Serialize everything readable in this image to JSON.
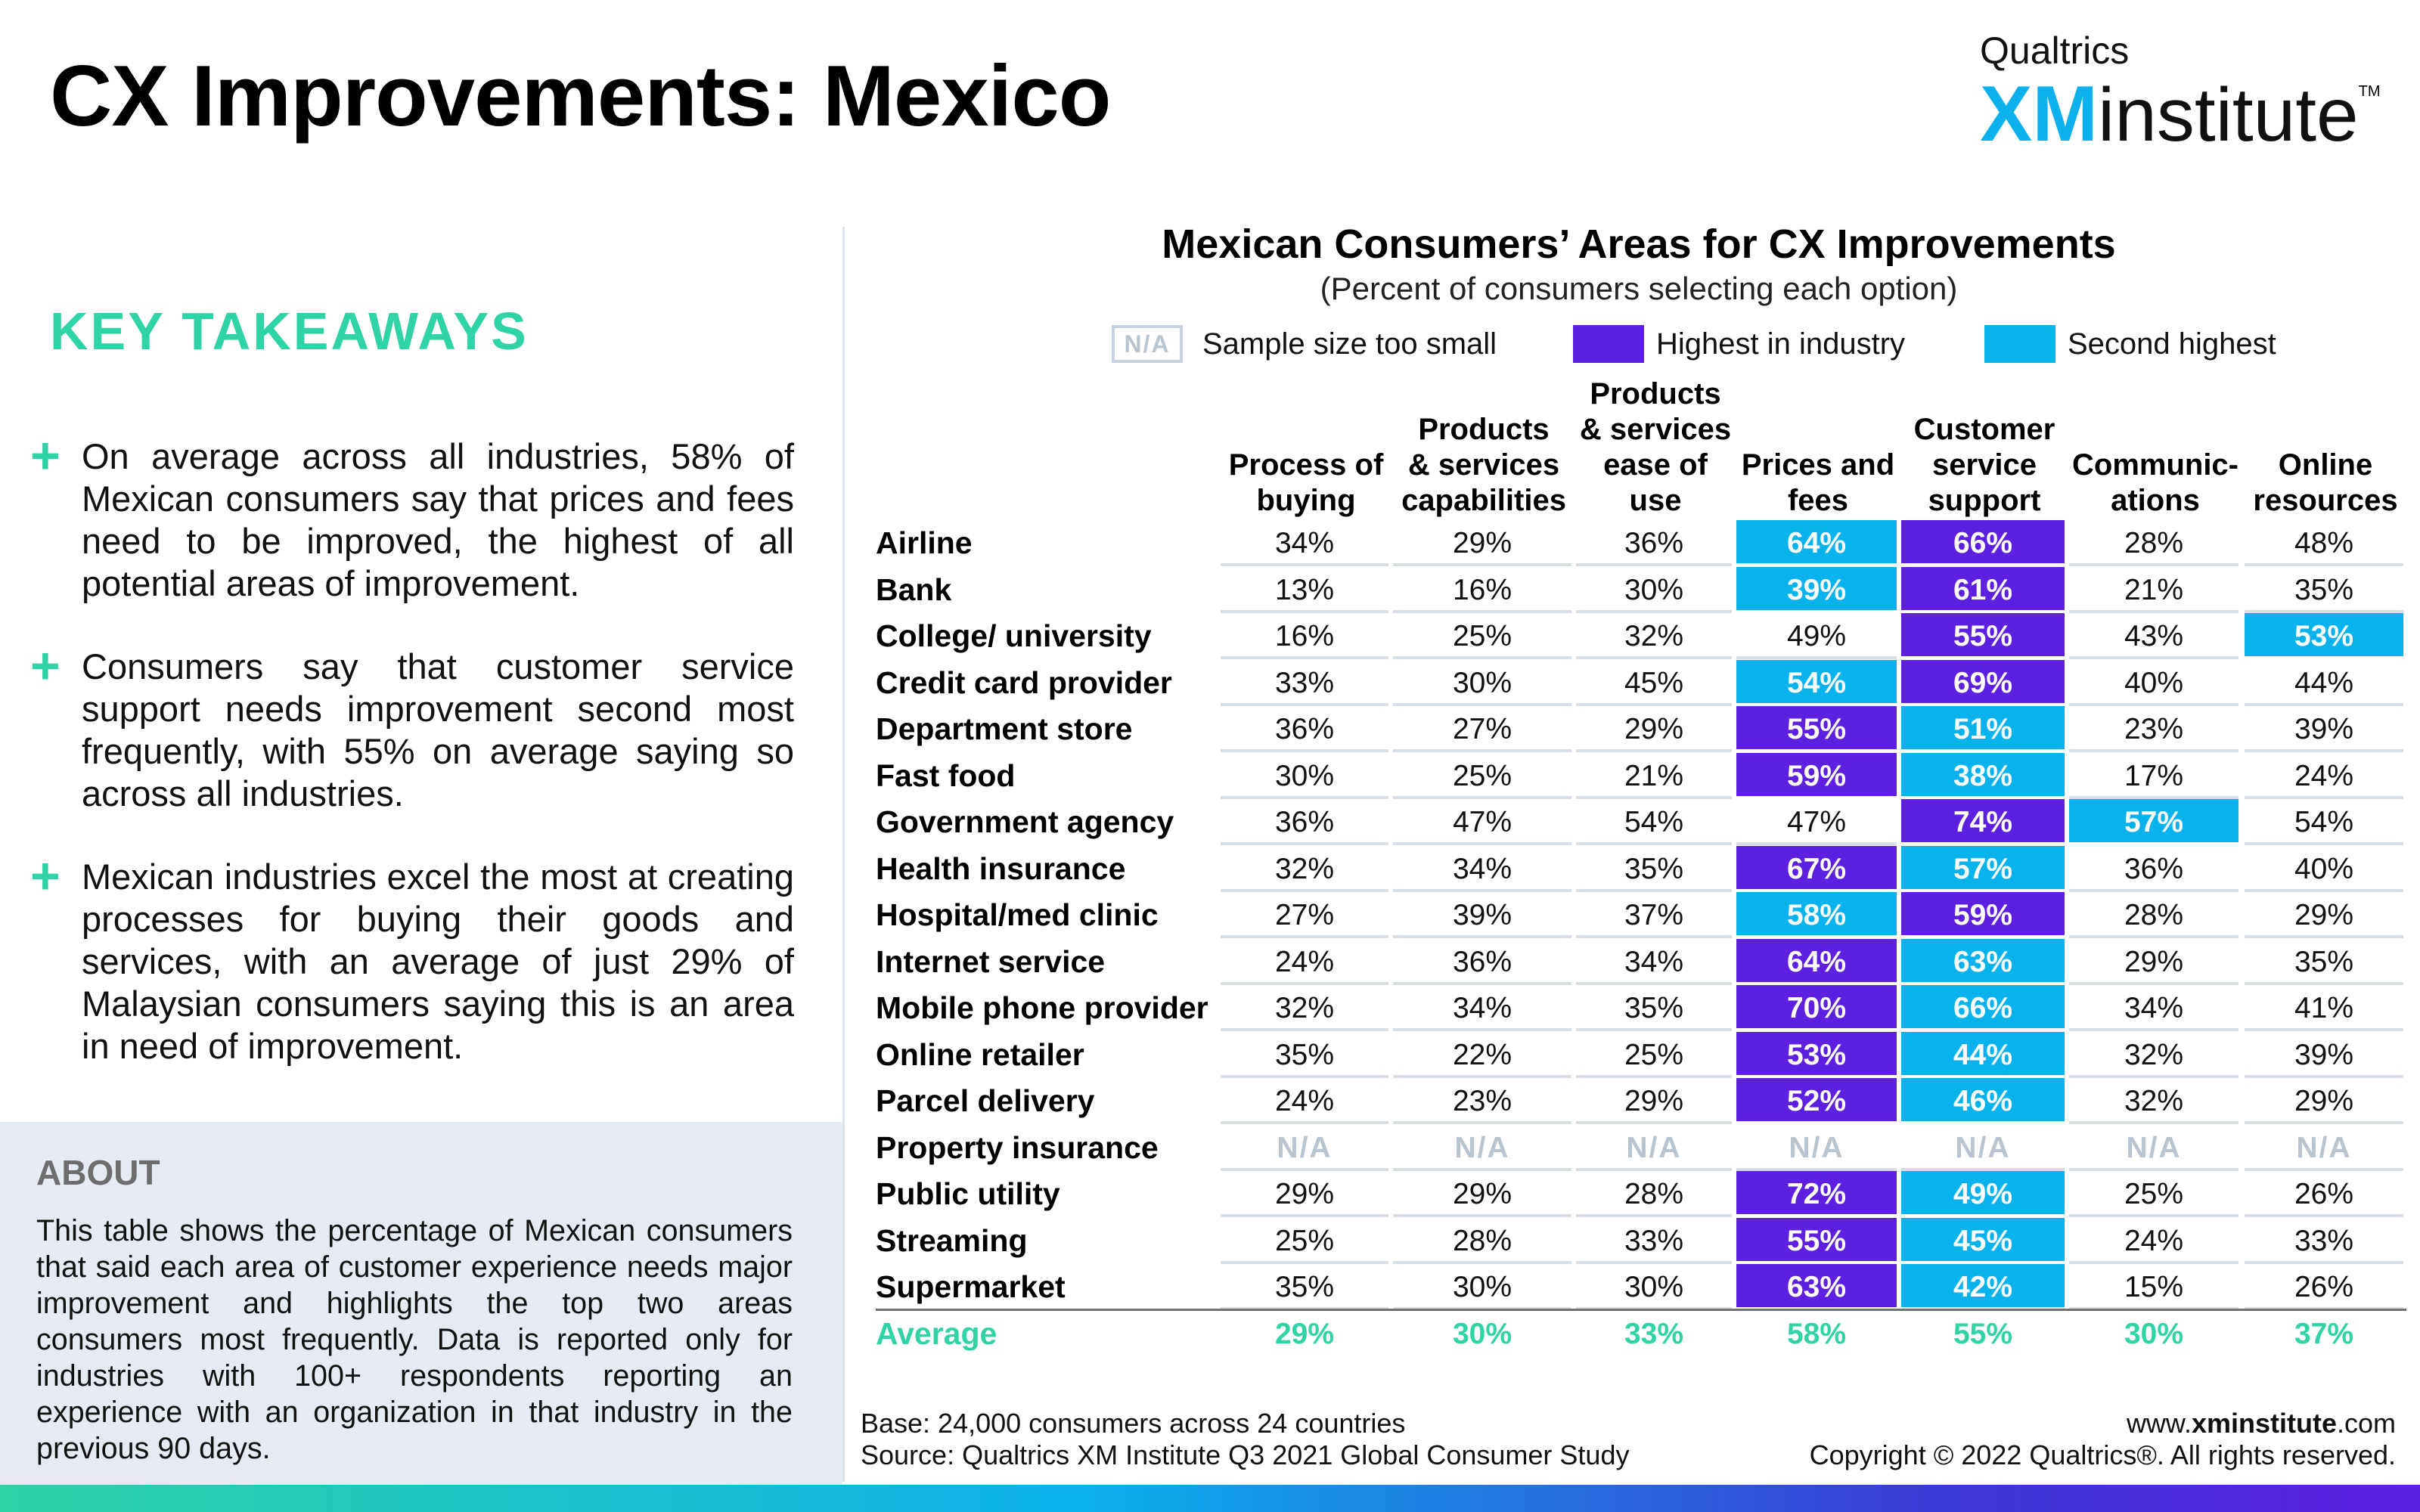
{
  "title": "CX Improvements: Mexico",
  "brand": {
    "top": "Qualtrics",
    "xm": "XM",
    "institute": "institute",
    "tm": "TM"
  },
  "takeaways": {
    "heading": "KEY TAKEAWAYS",
    "bullet_icon": "plus-icon",
    "items": [
      "On average across all industries, 58% of Mexican consumers say that prices and fees need to be improved, the highest of all potential areas of improvement.",
      "Consumers say that customer service support needs improvement second most frequently, with 55% on average saying so across all industries.",
      "Mexican industries excel the most at creating processes for buying their goods and services, with an average of just 29% of Malaysian consumers saying this is an area in need of improvement."
    ]
  },
  "about": {
    "heading": "ABOUT",
    "text": "This table shows the percentage of Mexican consumers that said each area of customer experience needs major improvement and highlights the top two areas consumers most frequently. Data is reported only for industries with 100+ respondents reporting an experience with an organization in that industry in the previous 90 days."
  },
  "colors": {
    "highest": "#5d1fe0",
    "second": "#08b2ec",
    "average": "#2fd3a6",
    "na_border": "#c6d2dd"
  },
  "legend": [
    {
      "swatch_text": "N/A",
      "label": "Sample size too small"
    },
    {
      "label": "Highest in industry"
    },
    {
      "label": "Second highest"
    }
  ],
  "chart_data": {
    "type": "table",
    "title": "Mexican Consumers’ Areas for CX Improvements",
    "subtitle": "(Percent of consumers selecting each option)",
    "columns": [
      [
        "Process of",
        "buying"
      ],
      [
        "Products",
        "& services",
        "capabilities"
      ],
      [
        "Products",
        "& services",
        "ease of",
        "use"
      ],
      [
        "Prices and",
        "fees"
      ],
      [
        "Customer",
        "service",
        "support"
      ],
      [
        "Communic-",
        "ations"
      ],
      [
        "Online",
        "resources"
      ]
    ],
    "rows": [
      {
        "label": "Airline",
        "values": [
          "34%",
          "29%",
          "36%",
          "64%",
          "66%",
          "28%",
          "48%"
        ],
        "highest": 4,
        "second": 3
      },
      {
        "label": "Bank",
        "values": [
          "13%",
          "16%",
          "30%",
          "39%",
          "61%",
          "21%",
          "35%"
        ],
        "highest": 4,
        "second": 3
      },
      {
        "label": "College/ university",
        "values": [
          "16%",
          "25%",
          "32%",
          "49%",
          "55%",
          "43%",
          "53%"
        ],
        "highest": 4,
        "second": 6
      },
      {
        "label": "Credit card provider",
        "values": [
          "33%",
          "30%",
          "45%",
          "54%",
          "69%",
          "40%",
          "44%"
        ],
        "highest": 4,
        "second": 3
      },
      {
        "label": "Department store",
        "values": [
          "36%",
          "27%",
          "29%",
          "55%",
          "51%",
          "23%",
          "39%"
        ],
        "highest": 3,
        "second": 4
      },
      {
        "label": "Fast food",
        "values": [
          "30%",
          "25%",
          "21%",
          "59%",
          "38%",
          "17%",
          "24%"
        ],
        "highest": 3,
        "second": 4
      },
      {
        "label": "Government agency",
        "values": [
          "36%",
          "47%",
          "54%",
          "47%",
          "74%",
          "57%",
          "54%"
        ],
        "highest": 4,
        "second": 5
      },
      {
        "label": "Health insurance",
        "values": [
          "32%",
          "34%",
          "35%",
          "67%",
          "57%",
          "36%",
          "40%"
        ],
        "highest": 3,
        "second": 4
      },
      {
        "label": "Hospital/med clinic",
        "values": [
          "27%",
          "39%",
          "37%",
          "58%",
          "59%",
          "28%",
          "29%"
        ],
        "highest": 4,
        "second": 3
      },
      {
        "label": "Internet service",
        "values": [
          "24%",
          "36%",
          "34%",
          "64%",
          "63%",
          "29%",
          "35%"
        ],
        "highest": 3,
        "second": 4
      },
      {
        "label": "Mobile phone provider",
        "values": [
          "32%",
          "34%",
          "35%",
          "70%",
          "66%",
          "34%",
          "41%"
        ],
        "highest": 3,
        "second": 4
      },
      {
        "label": "Online retailer",
        "values": [
          "35%",
          "22%",
          "25%",
          "53%",
          "44%",
          "32%",
          "39%"
        ],
        "highest": 3,
        "second": 4
      },
      {
        "label": "Parcel delivery",
        "values": [
          "24%",
          "23%",
          "29%",
          "52%",
          "46%",
          "32%",
          "29%"
        ],
        "highest": 3,
        "second": 4
      },
      {
        "label": "Property insurance",
        "values": [
          "N/A",
          "N/A",
          "N/A",
          "N/A",
          "N/A",
          "N/A",
          "N/A"
        ],
        "highest": null,
        "second": null
      },
      {
        "label": "Public utility",
        "values": [
          "29%",
          "29%",
          "28%",
          "72%",
          "49%",
          "25%",
          "26%"
        ],
        "highest": 3,
        "second": 4
      },
      {
        "label": "Streaming",
        "values": [
          "25%",
          "28%",
          "33%",
          "55%",
          "45%",
          "24%",
          "33%"
        ],
        "highest": 3,
        "second": 4
      },
      {
        "label": "Supermarket",
        "values": [
          "35%",
          "30%",
          "30%",
          "63%",
          "42%",
          "15%",
          "26%"
        ],
        "highest": 3,
        "second": 4
      }
    ],
    "average": {
      "label": "Average",
      "values": [
        "29%",
        "30%",
        "33%",
        "58%",
        "55%",
        "30%",
        "37%"
      ]
    }
  },
  "footer": {
    "base": "Base: 24,000 consumers across 24 countries",
    "source": "Source: Qualtrics XM Institute Q3 2021 Global Consumer Study",
    "url_prefix": "www.",
    "url_bold": "xminstitute",
    "url_suffix": ".com",
    "copyright": "Copyright © 2022 Qualtrics®. All rights reserved."
  }
}
